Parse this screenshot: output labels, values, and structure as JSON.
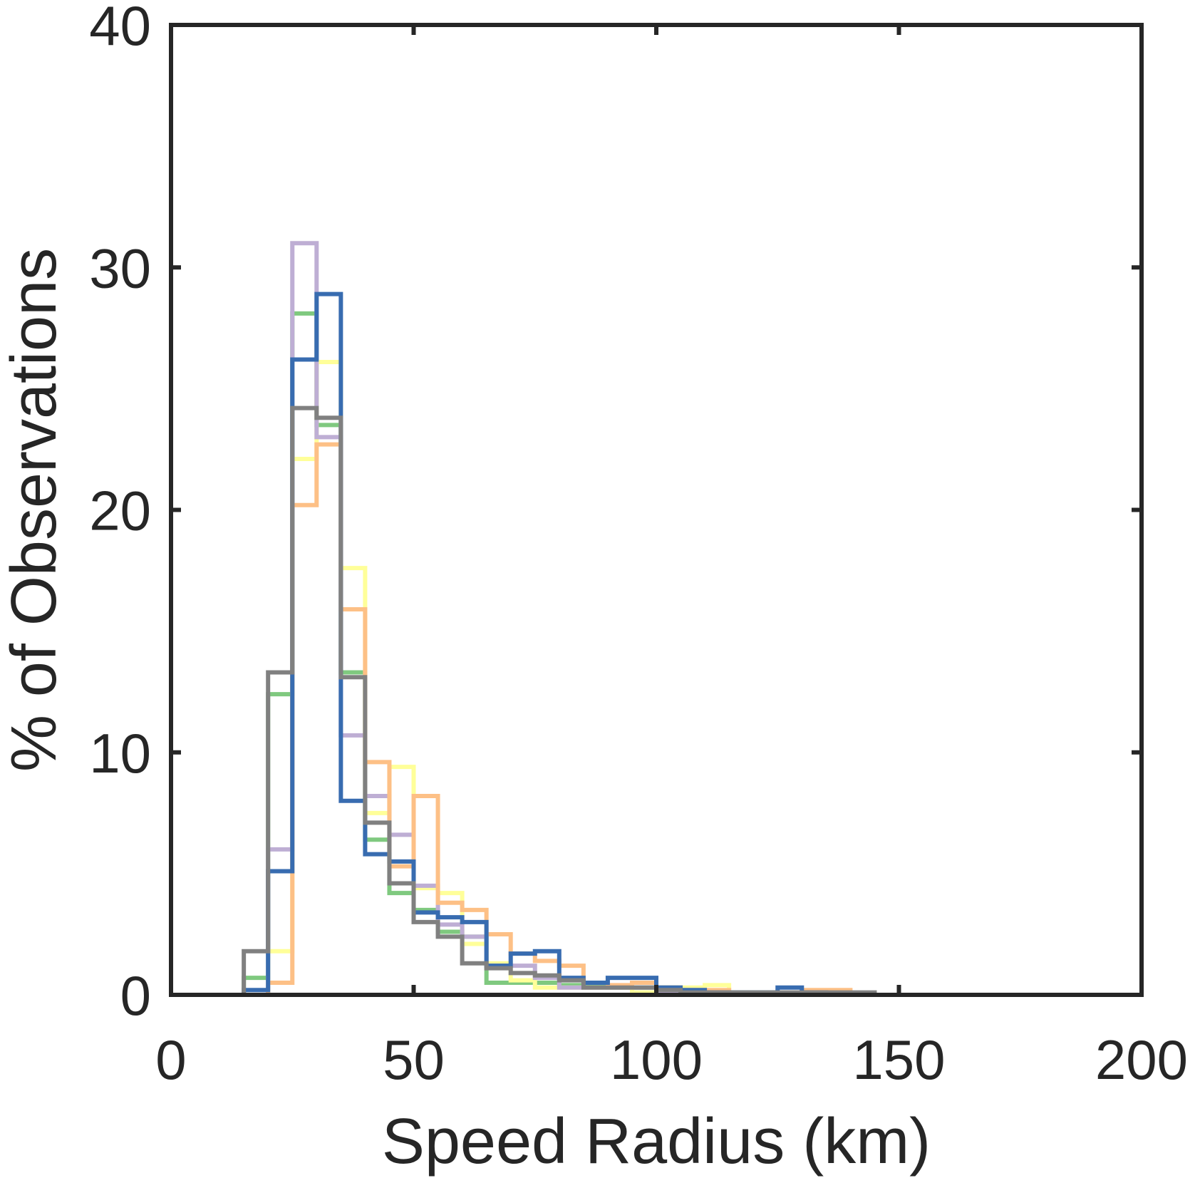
{
  "chart_data": {
    "type": "histogram",
    "xlabel": "Speed Radius (km)",
    "ylabel": "% of Observations",
    "xlim": [
      0,
      200
    ],
    "ylim": [
      0,
      40
    ],
    "xticks": [
      "0",
      "50",
      "100",
      "150",
      "200"
    ],
    "yticks": [
      "0",
      "10",
      "20",
      "30",
      "40"
    ],
    "grid": false,
    "legend": "none",
    "bin_edges": [
      15,
      20,
      25,
      30,
      35,
      40,
      45,
      50,
      55,
      60,
      65,
      70,
      75,
      80,
      85,
      90,
      95,
      100,
      105,
      110,
      115,
      120,
      125,
      130,
      135,
      140,
      145
    ],
    "series": [
      {
        "color": "#7fc97f",
        "values": [
          0.7,
          12.4,
          28.1,
          23.5,
          13.3,
          6.4,
          4.2,
          3.5,
          2.6,
          2.4,
          0.5,
          0.5,
          0.5,
          0.4,
          0.4,
          0.3,
          0.3,
          0.3,
          0.1,
          0.1,
          0.0,
          0.0,
          0.0,
          0.0,
          0.0,
          0.0
        ]
      },
      {
        "color": "#ffff99",
        "values": [
          0.0,
          1.8,
          22.1,
          26.1,
          17.6,
          7.5,
          9.4,
          4.4,
          4.2,
          2.1,
          1.3,
          0.6,
          0.3,
          0.3,
          0.3,
          0.3,
          0.1,
          0.1,
          0.3,
          0.4,
          0.1,
          0.0,
          0.0,
          0.0,
          0.0,
          0.0
        ]
      },
      {
        "color": "#beaed4",
        "values": [
          0.0,
          6.0,
          31.0,
          23.0,
          10.7,
          8.2,
          6.6,
          4.5,
          2.9,
          2.4,
          1.2,
          1.2,
          0.7,
          0.3,
          0.3,
          0.3,
          0.3,
          0.1,
          0.1,
          0.0,
          0.0,
          0.0,
          0.0,
          0.0,
          0.0,
          0.0
        ]
      },
      {
        "color": "#fdc086",
        "values": [
          0.0,
          0.5,
          20.2,
          22.7,
          15.9,
          9.6,
          5.3,
          8.2,
          3.8,
          3.5,
          2.5,
          1.7,
          1.4,
          1.2,
          0.5,
          0.4,
          0.5,
          0.3,
          0.2,
          0.2,
          0.0,
          0.0,
          0.0,
          0.2,
          0.2,
          0.0
        ]
      },
      {
        "color": "#386cb0",
        "values": [
          0.2,
          5.1,
          26.2,
          28.9,
          8.0,
          5.8,
          5.5,
          3.4,
          3.2,
          3.0,
          1.2,
          1.7,
          1.8,
          0.7,
          0.5,
          0.7,
          0.7,
          0.3,
          0.2,
          0.1,
          0.1,
          0.1,
          0.3,
          0.1,
          0.0,
          0.0
        ]
      },
      {
        "color": "#808080",
        "values": [
          1.8,
          13.3,
          24.2,
          23.8,
          13.1,
          7.1,
          4.6,
          3.0,
          2.4,
          1.3,
          1.1,
          0.9,
          0.8,
          0.6,
          0.3,
          0.3,
          0.3,
          0.2,
          0.1,
          0.1,
          0.1,
          0.1,
          0.1,
          0.1,
          0.1,
          0.1
        ]
      }
    ]
  }
}
